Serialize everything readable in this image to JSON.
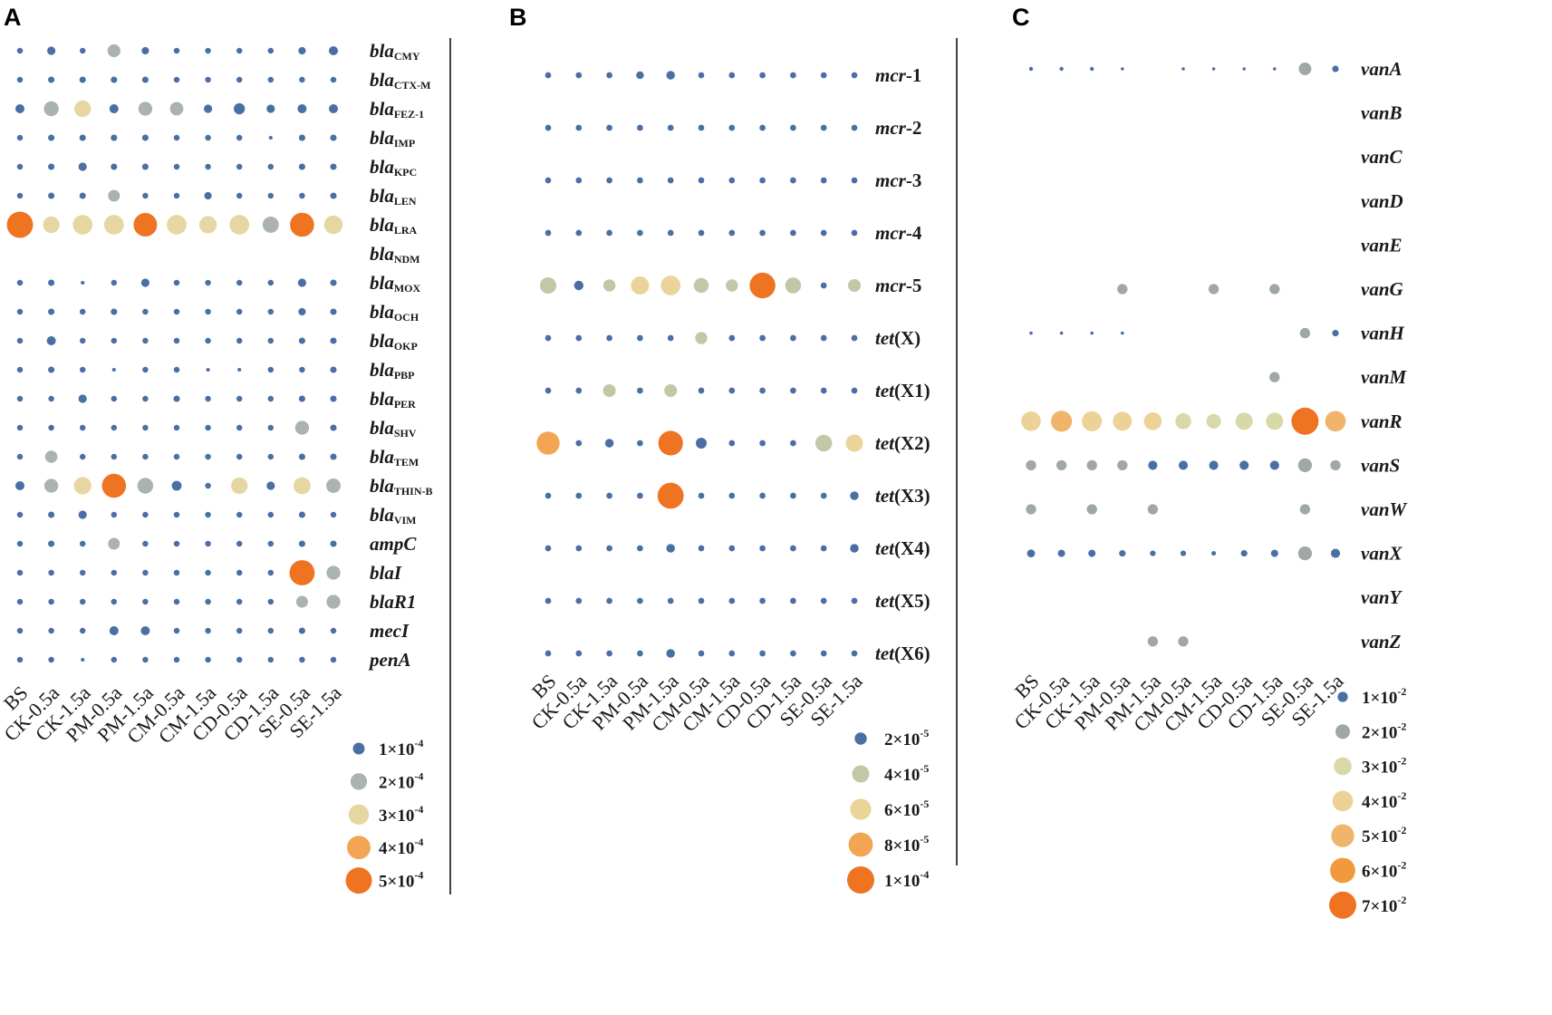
{
  "chart_data": [
    {
      "type": "bubble",
      "panel": "A",
      "samples": [
        "BS",
        "CK-0.5a",
        "CK-1.5a",
        "PM-0.5a",
        "PM-1.5a",
        "CM-0.5a",
        "CM-1.5a",
        "CD-0.5a",
        "CD-1.5a",
        "SE-0.5a",
        "SE-1.5a"
      ],
      "genes": [
        {
          "base": "bla",
          "sub": "CMY",
          "tail": "",
          "plain": false
        },
        {
          "base": "bla",
          "sub": "CTX-M",
          "tail": "",
          "plain": false
        },
        {
          "base": "bla",
          "sub": "FEZ-1",
          "tail": "",
          "plain": false
        },
        {
          "base": "bla",
          "sub": "IMP",
          "tail": "",
          "plain": false
        },
        {
          "base": "bla",
          "sub": "KPC",
          "tail": "",
          "plain": false
        },
        {
          "base": "bla",
          "sub": "LEN",
          "tail": "",
          "plain": false
        },
        {
          "base": "bla",
          "sub": "LRA",
          "tail": "",
          "plain": false
        },
        {
          "base": "bla",
          "sub": "NDM",
          "tail": "",
          "plain": false
        },
        {
          "base": "bla",
          "sub": "MOX",
          "tail": "",
          "plain": false
        },
        {
          "base": "bla",
          "sub": "OCH",
          "tail": "",
          "plain": false
        },
        {
          "base": "bla",
          "sub": "OKP",
          "tail": "",
          "plain": false
        },
        {
          "base": "bla",
          "sub": "PBP",
          "tail": "",
          "plain": false
        },
        {
          "base": "bla",
          "sub": "PER",
          "tail": "",
          "plain": false
        },
        {
          "base": "bla",
          "sub": "SHV",
          "tail": "",
          "plain": false
        },
        {
          "base": "bla",
          "sub": "TEM",
          "tail": "",
          "plain": false
        },
        {
          "base": "bla",
          "sub": "THIN-B",
          "tail": "",
          "plain": false
        },
        {
          "base": "bla",
          "sub": "VIM",
          "tail": "",
          "plain": false
        },
        {
          "base": "ampC",
          "sub": "",
          "tail": "",
          "plain": false
        },
        {
          "base": "blaI",
          "sub": "",
          "tail": "",
          "plain": false
        },
        {
          "base": "blaR1",
          "sub": "",
          "tail": "",
          "plain": false
        },
        {
          "base": "mecI",
          "sub": "",
          "tail": "",
          "plain": false
        },
        {
          "base": "penA",
          "sub": "",
          "tail": "",
          "plain": false
        }
      ],
      "values": [
        [
          0.25,
          0.5,
          0.25,
          1.2,
          0.4,
          0.25,
          0.25,
          0.25,
          0.25,
          0.4,
          0.6
        ],
        [
          0.25,
          0.3,
          0.3,
          0.3,
          0.3,
          0.25,
          0.25,
          0.25,
          0.25,
          0.25,
          0.25
        ],
        [
          0.6,
          1.6,
          2.0,
          0.6,
          1.4,
          1.3,
          0.5,
          0.9,
          0.5,
          0.6,
          0.6
        ],
        [
          0.25,
          0.3,
          0.3,
          0.3,
          0.3,
          0.25,
          0.25,
          0.25,
          0.1,
          0.3,
          0.3
        ],
        [
          0.25,
          0.3,
          0.5,
          0.3,
          0.3,
          0.25,
          0.25,
          0.25,
          0.25,
          0.3,
          0.3
        ],
        [
          0.25,
          0.3,
          0.3,
          1.0,
          0.25,
          0.25,
          0.4,
          0.25,
          0.25,
          0.25,
          0.3
        ],
        [
          5.0,
          2.0,
          2.8,
          2.8,
          4.0,
          2.8,
          2.2,
          2.8,
          1.9,
          4.2,
          2.5
        ],
        [
          0,
          0,
          0,
          0,
          0,
          0,
          0,
          0,
          0,
          0,
          0
        ],
        [
          0.25,
          0.3,
          0.1,
          0.25,
          0.5,
          0.25,
          0.25,
          0.25,
          0.25,
          0.5,
          0.3
        ],
        [
          0.25,
          0.3,
          0.25,
          0.3,
          0.25,
          0.25,
          0.25,
          0.25,
          0.25,
          0.4,
          0.3
        ],
        [
          0.25,
          0.6,
          0.25,
          0.25,
          0.25,
          0.25,
          0.25,
          0.25,
          0.25,
          0.3,
          0.3
        ],
        [
          0.25,
          0.3,
          0.25,
          0.1,
          0.25,
          0.25,
          0.1,
          0.1,
          0.25,
          0.25,
          0.3
        ],
        [
          0.25,
          0.25,
          0.5,
          0.25,
          0.25,
          0.3,
          0.25,
          0.25,
          0.25,
          0.3,
          0.3
        ],
        [
          0.25,
          0.25,
          0.25,
          0.25,
          0.25,
          0.25,
          0.25,
          0.25,
          0.25,
          1.4,
          0.3
        ],
        [
          0.25,
          1.1,
          0.25,
          0.25,
          0.25,
          0.25,
          0.25,
          0.25,
          0.25,
          0.3,
          0.3
        ],
        [
          0.6,
          1.4,
          2.2,
          4.2,
          1.8,
          0.7,
          0.25,
          2.0,
          0.5,
          2.1,
          1.5
        ],
        [
          0.25,
          0.3,
          0.5,
          0.25,
          0.25,
          0.25,
          0.25,
          0.25,
          0.25,
          0.3,
          0.25
        ],
        [
          0.25,
          0.3,
          0.25,
          1.0,
          0.25,
          0.25,
          0.25,
          0.25,
          0.25,
          0.3,
          0.3
        ],
        [
          0.25,
          0.25,
          0.25,
          0.25,
          0.25,
          0.25,
          0.25,
          0.25,
          0.25,
          4.6,
          1.4
        ],
        [
          0.25,
          0.25,
          0.25,
          0.25,
          0.25,
          0.25,
          0.25,
          0.25,
          0.25,
          1.0,
          1.4
        ],
        [
          0.25,
          0.25,
          0.25,
          0.6,
          0.6,
          0.25,
          0.25,
          0.25,
          0.25,
          0.3,
          0.25
        ],
        [
          0.25,
          0.25,
          0.1,
          0.25,
          0.25,
          0.25,
          0.25,
          0.25,
          0.25,
          0.25,
          0.25
        ]
      ],
      "legend": [
        {
          "mantissa": "1×10",
          "exp": "-4",
          "value": 1
        },
        {
          "mantissa": "2×10",
          "exp": "-4",
          "value": 2
        },
        {
          "mantissa": "3×10",
          "exp": "-4",
          "value": 3
        },
        {
          "mantissa": "4×10",
          "exp": "-4",
          "value": 4
        },
        {
          "mantissa": "5×10",
          "exp": "-4",
          "value": 5
        }
      ],
      "unit": "×10^-4",
      "colors": [
        "#4a6fa5",
        "#aab3ad",
        "#e6d7a2",
        "#f2a653",
        "#ef7422"
      ]
    },
    {
      "type": "bubble",
      "panel": "B",
      "samples": [
        "BS",
        "CK-0.5a",
        "CK-1.5a",
        "PM-0.5a",
        "PM-1.5a",
        "CM-0.5a",
        "CM-1.5a",
        "CD-0.5a",
        "CD-1.5a",
        "SE-0.5a",
        "SE-1.5a"
      ],
      "genes": [
        {
          "base": "mcr",
          "sub": "",
          "tail": "-1",
          "plain": false
        },
        {
          "base": "mcr",
          "sub": "",
          "tail": "-2",
          "plain": false
        },
        {
          "base": "mcr",
          "sub": "",
          "tail": "-3",
          "plain": false
        },
        {
          "base": "mcr",
          "sub": "",
          "tail": "-4",
          "plain": false
        },
        {
          "base": "mcr",
          "sub": "",
          "tail": "-5",
          "plain": false
        },
        {
          "base": "tet",
          "sub": "",
          "tail": "(X)",
          "plain": false
        },
        {
          "base": "tet",
          "sub": "",
          "tail": "(X1)",
          "plain": false
        },
        {
          "base": "tet",
          "sub": "",
          "tail": "(X2)",
          "plain": false
        },
        {
          "base": "tet",
          "sub": "",
          "tail": "(X3)",
          "plain": false
        },
        {
          "base": "tet",
          "sub": "",
          "tail": "(X4)",
          "plain": false
        },
        {
          "base": "tet",
          "sub": "",
          "tail": "(X5)",
          "plain": false
        },
        {
          "base": "tet",
          "sub": "",
          "tail": "(X6)",
          "plain": false
        }
      ],
      "values": [
        [
          0.5,
          0.5,
          0.5,
          0.8,
          1.0,
          0.5,
          0.5,
          0.5,
          0.5,
          0.5,
          0.5
        ],
        [
          0.5,
          0.5,
          0.5,
          0.5,
          0.5,
          0.5,
          0.5,
          0.5,
          0.5,
          0.5,
          0.5
        ],
        [
          0.5,
          0.5,
          0.5,
          0.5,
          0.5,
          0.5,
          0.5,
          0.5,
          0.5,
          0.5,
          0.5
        ],
        [
          0.5,
          0.5,
          0.5,
          0.5,
          0.5,
          0.5,
          0.5,
          0.5,
          0.5,
          0.5,
          0.5
        ],
        [
          3.6,
          1.2,
          2.0,
          4.4,
          5.2,
          3.0,
          2.0,
          9.0,
          3.4,
          0.5,
          2.2
        ],
        [
          0.5,
          0.5,
          0.5,
          0.5,
          0.5,
          2.0,
          0.5,
          0.5,
          0.5,
          0.5,
          0.5
        ],
        [
          0.5,
          0.5,
          2.2,
          0.5,
          2.2,
          0.5,
          0.5,
          0.5,
          0.5,
          0.5,
          0.5
        ],
        [
          7.2,
          0.5,
          1.0,
          0.5,
          8.2,
          1.6,
          0.5,
          0.5,
          0.5,
          3.8,
          4.0
        ],
        [
          0.5,
          0.5,
          0.5,
          0.5,
          9.2,
          0.5,
          0.5,
          0.5,
          0.5,
          0.5,
          1.0
        ],
        [
          0.5,
          0.5,
          0.5,
          0.5,
          1.0,
          0.5,
          0.5,
          0.5,
          0.5,
          0.5,
          1.0
        ],
        [
          0.5,
          0.5,
          0.5,
          0.5,
          0.5,
          0.5,
          0.5,
          0.5,
          0.5,
          0.5,
          0.5
        ],
        [
          0.5,
          0.5,
          0.5,
          0.5,
          1.0,
          0.5,
          0.5,
          0.5,
          0.5,
          0.5,
          0.5
        ]
      ],
      "legend": [
        {
          "mantissa": "2×10",
          "exp": "-5",
          "value": 2
        },
        {
          "mantissa": "4×10",
          "exp": "-5",
          "value": 4
        },
        {
          "mantissa": "6×10",
          "exp": "-5",
          "value": 6
        },
        {
          "mantissa": "8×10",
          "exp": "-5",
          "value": 8
        },
        {
          "mantissa": "1×10",
          "exp": "-4",
          "value": 10
        }
      ],
      "unit": "×10^-5",
      "colors": [
        "#4a6fa5",
        "#c3c7a7",
        "#ead49a",
        "#f2a653",
        "#ef7422"
      ]
    },
    {
      "type": "bubble",
      "panel": "C",
      "samples": [
        "BS",
        "CK-0.5a",
        "CK-1.5a",
        "PM-0.5a",
        "PM-1.5a",
        "CM-0.5a",
        "CM-1.5a",
        "CD-0.5a",
        "CD-1.5a",
        "SE-0.5a",
        "SE-1.5a"
      ],
      "genes": [
        {
          "base": "vanA",
          "sub": "",
          "tail": "",
          "plain": false
        },
        {
          "base": "vanB",
          "sub": "",
          "tail": "",
          "plain": false
        },
        {
          "base": "vanC",
          "sub": "",
          "tail": "",
          "plain": false
        },
        {
          "base": "vanD",
          "sub": "",
          "tail": "",
          "plain": false
        },
        {
          "base": "vanE",
          "sub": "",
          "tail": "",
          "plain": false
        },
        {
          "base": "vanG",
          "sub": "",
          "tail": "",
          "plain": false
        },
        {
          "base": "vanH",
          "sub": "",
          "tail": "",
          "plain": false
        },
        {
          "base": "vanM",
          "sub": "",
          "tail": "",
          "plain": false
        },
        {
          "base": "vanR",
          "sub": "",
          "tail": "",
          "plain": false
        },
        {
          "base": "vanS",
          "sub": "",
          "tail": "",
          "plain": false
        },
        {
          "base": "vanW",
          "sub": "",
          "tail": "",
          "plain": false
        },
        {
          "base": "vanX",
          "sub": "",
          "tail": "",
          "plain": false
        },
        {
          "base": "vanY",
          "sub": "",
          "tail": "",
          "plain": false
        },
        {
          "base": "vanZ",
          "sub": "",
          "tail": "",
          "plain": false
        }
      ],
      "values": [
        [
          0.15,
          0.15,
          0.15,
          0.1,
          0,
          0.1,
          0.1,
          0.1,
          0.1,
          1.5,
          0.4
        ],
        [
          0,
          0,
          0,
          0,
          0,
          0,
          0,
          0,
          0,
          0,
          0
        ],
        [
          0,
          0,
          0,
          0,
          0,
          0,
          0,
          0,
          0,
          0,
          0
        ],
        [
          0,
          0,
          0,
          0,
          0,
          0,
          0,
          0,
          0,
          0,
          0
        ],
        [
          0,
          0,
          0,
          0,
          0,
          0,
          0,
          0,
          0,
          0,
          0
        ],
        [
          0,
          0,
          0,
          1.0,
          0,
          0,
          1.0,
          0,
          1.0,
          0,
          0
        ],
        [
          0.1,
          0.1,
          0.1,
          0.1,
          0,
          0,
          0,
          0,
          0,
          1.0,
          0.4
        ],
        [
          0,
          0,
          0,
          0,
          0,
          0,
          0,
          0,
          1.0,
          0,
          0
        ],
        [
          3.6,
          4.2,
          3.8,
          3.4,
          3.0,
          2.4,
          2.0,
          2.8,
          2.8,
          7.0,
          4.0
        ],
        [
          1.0,
          1.0,
          1.0,
          1.0,
          0.8,
          0.8,
          0.8,
          0.8,
          0.8,
          1.8,
          1.0
        ],
        [
          1.0,
          0,
          1.0,
          0,
          1.0,
          0,
          0,
          0,
          0,
          1.0,
          0
        ],
        [
          0.6,
          0.5,
          0.5,
          0.4,
          0.3,
          0.3,
          0.2,
          0.4,
          0.5,
          1.8,
          0.8
        ],
        [
          0,
          0,
          0,
          0,
          0,
          0,
          0,
          0,
          0,
          0,
          0
        ],
        [
          0,
          0,
          0,
          0,
          1.0,
          1.0,
          0,
          0,
          0,
          0,
          0
        ]
      ],
      "legend": [
        {
          "mantissa": "1×10",
          "exp": "-2",
          "value": 1
        },
        {
          "mantissa": "2×10",
          "exp": "-2",
          "value": 2
        },
        {
          "mantissa": "3×10",
          "exp": "-2",
          "value": 3
        },
        {
          "mantissa": "4×10",
          "exp": "-2",
          "value": 4
        },
        {
          "mantissa": "5×10",
          "exp": "-2",
          "value": 5
        },
        {
          "mantissa": "6×10",
          "exp": "-2",
          "value": 6
        },
        {
          "mantissa": "7×10",
          "exp": "-2",
          "value": 7
        }
      ],
      "unit": "×10^-2",
      "colors": [
        "#4a6fa5",
        "#9fa8a6",
        "#d9d8a8",
        "#ecd296",
        "#f0b46a",
        "#f09a3c",
        "#ef7422"
      ]
    }
  ]
}
